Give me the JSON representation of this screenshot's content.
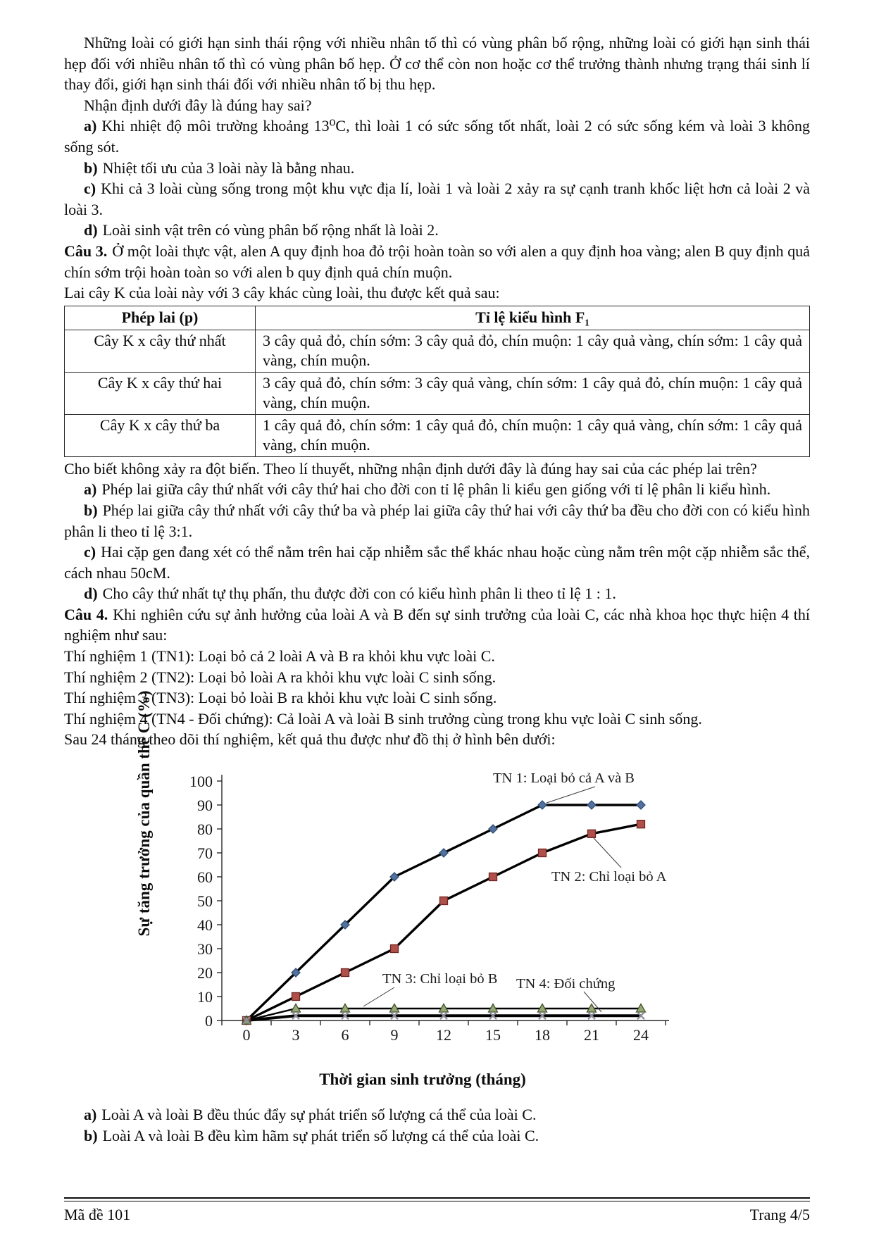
{
  "intro": {
    "p1": "Những loài có giới hạn sinh thái rộng với nhiều nhân tố thì có vùng phân bố rộng, những loài có giới hạn sinh thái hẹp đối với nhiều nhân tố thì có vùng phân bố hẹp. Ở cơ thể còn non hoặc cơ thể trưởng thành nhưng trạng thái sinh lí thay đổi, giới hạn sinh thái đối với nhiều nhân tố bị thu hẹp.",
    "p2": "Nhận định dưới đây là đúng hay sai?"
  },
  "q2": {
    "options": [
      {
        "label": "a)",
        "text": "Khi nhiệt độ môi trường khoảng 13⁰C, thì loài 1 có sức sống tốt nhất, loài 2 có sức sống kém và loài 3 không sống sót."
      },
      {
        "label": "b)",
        "text": "Nhiệt tối ưu của 3 loài này là bằng nhau."
      },
      {
        "label": "c)",
        "text": "Khi cả 3 loài cùng sống trong một khu vực địa lí, loài 1 và loài 2 xảy ra sự cạnh tranh khốc liệt hơn cả loài 2 và loài 3."
      },
      {
        "label": "d)",
        "text": "Loài sinh vật trên có vùng phân bố rộng nhất là loài 2."
      }
    ]
  },
  "cau3": {
    "title": "Câu 3.",
    "intro": "Ở một loài thực vật, alen A quy định hoa đỏ trội hoàn toàn so với alen a quy định hoa vàng; alen B quy định quả chín sớm trội hoàn toàn so với alen b quy định quả chín muộn.",
    "lead": "Lai cây K của loài này với 3 cây khác cùng loài, thu được kết quả sau:",
    "table": {
      "headers": [
        "Phép lai (p)",
        "Tỉ lệ kiểu hình F₁"
      ],
      "rows": [
        {
          "cross": "Cây K x cây thứ nhất",
          "result": "3 cây quả đỏ, chín sớm: 3 cây quả đỏ, chín muộn: 1 cây quả vàng, chín sớm: 1 cây quả vàng, chín muộn."
        },
        {
          "cross": "Cây K x cây thứ hai",
          "result": "3 cây quả đỏ, chín sớm: 3 cây quả vàng, chín sớm: 1 cây quả đỏ, chín muộn: 1 cây quả vàng, chín muộn."
        },
        {
          "cross": "Cây K x cây thứ ba",
          "result": "1 cây quả đỏ, chín sớm: 1 cây quả đỏ, chín muộn: 1 cây quả vàng, chín sớm: 1 cây quả vàng, chín muộn."
        }
      ]
    },
    "note": "Cho biết không xảy ra đột biến. Theo lí thuyết, những nhận định dưới đây là đúng hay sai của các phép lai trên?",
    "options": [
      {
        "label": "a)",
        "text": "Phép lai giữa cây thứ nhất với cây thứ hai cho đời con tỉ lệ phân li kiểu gen giống với tỉ lệ phân li kiểu hình."
      },
      {
        "label": "b)",
        "text": "Phép lai giữa cây thứ nhất với cây thứ ba và phép lai giữa cây thứ hai với cây thứ ba đều cho đời con có kiểu hình phân li theo tỉ lệ 3:1."
      },
      {
        "label": "c)",
        "text": "Hai cặp gen đang xét có thể nằm trên hai cặp nhiễm sắc thể khác nhau hoặc cùng nằm trên một cặp nhiễm sắc thể, cách nhau 50cM."
      },
      {
        "label": "d)",
        "text": "Cho cây thứ nhất tự thụ phấn, thu được đời con có kiểu hình phân li theo tỉ lệ 1 : 1."
      }
    ]
  },
  "cau4": {
    "title": "Câu 4.",
    "intro": "Khi nghiên cứu sự ảnh hưởng của loài A và B đến sự sinh trưởng của loài C, các nhà khoa học thực hiện 4 thí nghiệm như sau:",
    "experiments": [
      "Thí nghiệm 1 (TN1): Loại bỏ cả 2 loài A và B ra khỏi khu vực loài C.",
      "Thí nghiệm 2 (TN2): Loại bỏ loài A ra khỏi khu vực loài C sinh sống.",
      "Thí nghiệm 3 (TN3): Loại bỏ loài B ra khỏi khu vực loài C sinh sống.",
      "Thí nghiệm 4 (TN4 - Đối chứng): Cả loài A và loài B sinh trưởng cùng trong khu vực loài C sinh sống."
    ],
    "outro": "Sau 24 tháng theo dõi thí nghiệm, kết quả thu được như đồ thị ở hình bên dưới:",
    "post_options": [
      {
        "label": "a)",
        "text": "Loài A và loài B đều thúc đẩy sự phát triển số lượng cá thể của loài C."
      },
      {
        "label": "b)",
        "text": "Loài A và loài B đều kìm hãm sự phát triển số lượng cá thể của loài C."
      }
    ]
  },
  "chart_data": {
    "type": "line",
    "x": [
      0,
      3,
      6,
      9,
      12,
      15,
      18,
      21,
      24
    ],
    "xlabel": "Thời gian sinh trưởng (tháng)",
    "ylabel": "Sự tăng trưởng của quần thể C (%)",
    "ylim": [
      0,
      100
    ],
    "ytick_step": 10,
    "grid": false,
    "legend_position": "annotations-on-plot",
    "line_color": "#000000",
    "series": [
      {
        "name": "TN 1",
        "annotation": "TN 1: Loại bỏ cả A và B",
        "marker": "diamond",
        "marker_fill": "#53719c",
        "marker_stroke": "#2e4e77",
        "values": [
          0,
          20,
          40,
          60,
          70,
          80,
          90,
          90,
          90
        ]
      },
      {
        "name": "TN 2",
        "annotation": "TN 2: Chỉ loại bỏ A",
        "marker": "square",
        "marker_fill": "#b0504a",
        "marker_stroke": "#6e2420",
        "values": [
          0,
          10,
          20,
          30,
          50,
          60,
          70,
          78,
          82
        ]
      },
      {
        "name": "TN 3",
        "annotation": "TN 3: Chỉ loại bỏ B",
        "marker": "triangle",
        "marker_fill": "#96a876",
        "marker_stroke": "#45522b",
        "values": [
          0,
          5,
          5,
          5,
          5,
          5,
          5,
          5,
          5
        ]
      },
      {
        "name": "TN 4",
        "annotation": "TN 4: Đối chứng",
        "marker": "x",
        "marker_fill": "none",
        "marker_stroke": "#8b8b99",
        "values": [
          0,
          2,
          2,
          2,
          2,
          2,
          2,
          2,
          2
        ]
      }
    ]
  },
  "footer": {
    "left": "Mã đề 101",
    "right": "Trang 4/5"
  }
}
